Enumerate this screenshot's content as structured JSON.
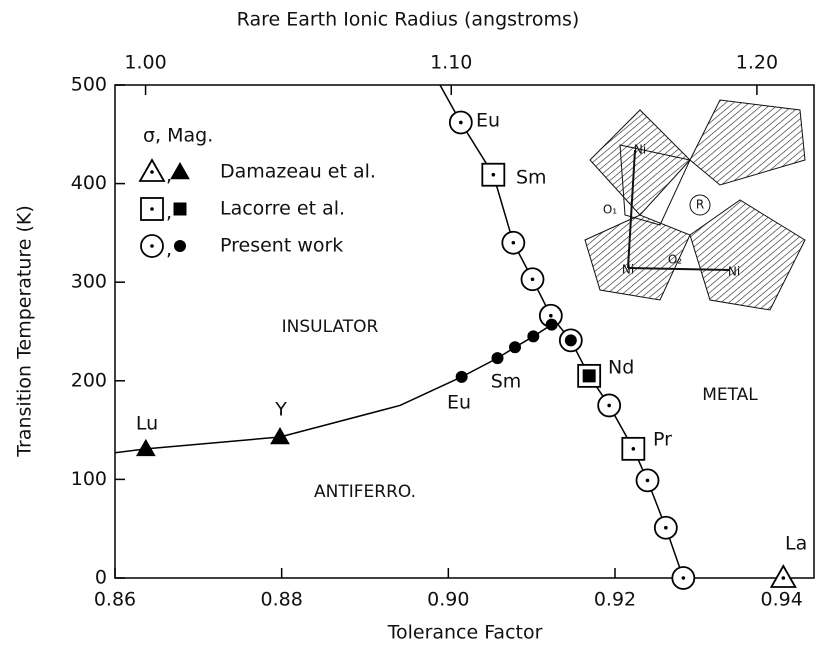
{
  "chart_data": {
    "type": "scatter",
    "x_label": "Tolerance Factor",
    "x2_label": "Rare Earth Ionic Radius (angstroms)",
    "y_label": "Transition Temperature (K)",
    "xlim": [
      0.86,
      0.944
    ],
    "xticks": [
      0.86,
      0.88,
      {
        "value": 0.9,
        "label": "0.90"
      },
      0.92,
      0.94
    ],
    "x2lim": [
      0.99,
      1.219
    ],
    "x2ticks": [
      {
        "value": 1,
        "label": "1.00"
      },
      {
        "value": 1.1,
        "label": "1.10"
      },
      {
        "value": 1.2,
        "label": "1.20"
      }
    ],
    "ylim": [
      0,
      500
    ],
    "yticks": [
      0,
      100,
      200,
      300,
      400,
      500
    ],
    "color": "#000000",
    "legend_title": "σ, Mag.",
    "legend_separator": ",",
    "series": [
      {
        "name": "Damazeau et al.",
        "marker": "triangle",
        "sigma_x": [
          0.9402
        ],
        "sigma_values": [
          0
        ],
        "mag_x": [
          0.8637,
          0.8798
        ],
        "mag_values": [
          131,
          143
        ]
      },
      {
        "name": "Lacorre et al.",
        "marker": "square",
        "sigma_x": [
          0.9054,
          0.9169,
          0.9222
        ],
        "sigma_values": [
          409,
          205,
          131
        ],
        "mag_x": [
          0.9169
        ],
        "mag_values": [
          205
        ]
      },
      {
        "name": "Present work",
        "marker": "circle",
        "sigma_x": [
          0.9015,
          0.9078,
          0.9101,
          0.9123,
          0.9147,
          0.9193,
          0.9239,
          0.9261,
          0.9282
        ],
        "sigma_values": [
          462,
          340,
          303,
          266,
          241,
          175,
          99,
          51,
          0
        ],
        "mag_x": [
          0.9016,
          0.9059,
          0.908,
          0.9102,
          0.9124,
          0.9147
        ],
        "mag_values": [
          204,
          223,
          234,
          245,
          257,
          241
        ]
      }
    ],
    "fit_lines": [
      {
        "x": [
          0.899,
          0.9015,
          0.9054,
          0.9078,
          0.9101,
          0.9123,
          0.9147,
          0.9169,
          0.9193,
          0.9222,
          0.9239,
          0.9261,
          0.9282
        ],
        "values": [
          500,
          462,
          409,
          340,
          303,
          266,
          241,
          205,
          175,
          131,
          99,
          51,
          0
        ]
      },
      {
        "x": [
          0.86,
          0.8637,
          0.8798,
          0.8942,
          0.9016,
          0.9059,
          0.908,
          0.9102,
          0.9124
        ],
        "values": [
          127,
          131,
          143,
          175,
          204,
          223,
          234,
          245,
          257
        ]
      }
    ],
    "annotations": [
      "Eu",
      "Sm",
      "Nd",
      "Pr",
      "La",
      "Lu",
      "Y",
      "Eu",
      "Sm",
      "INSULATOR",
      "ANTIFERRO.",
      "METAL"
    ],
    "inset_labels": [
      "Ni",
      "Ni",
      "Ni",
      "O₁",
      "O₂",
      "R"
    ]
  }
}
